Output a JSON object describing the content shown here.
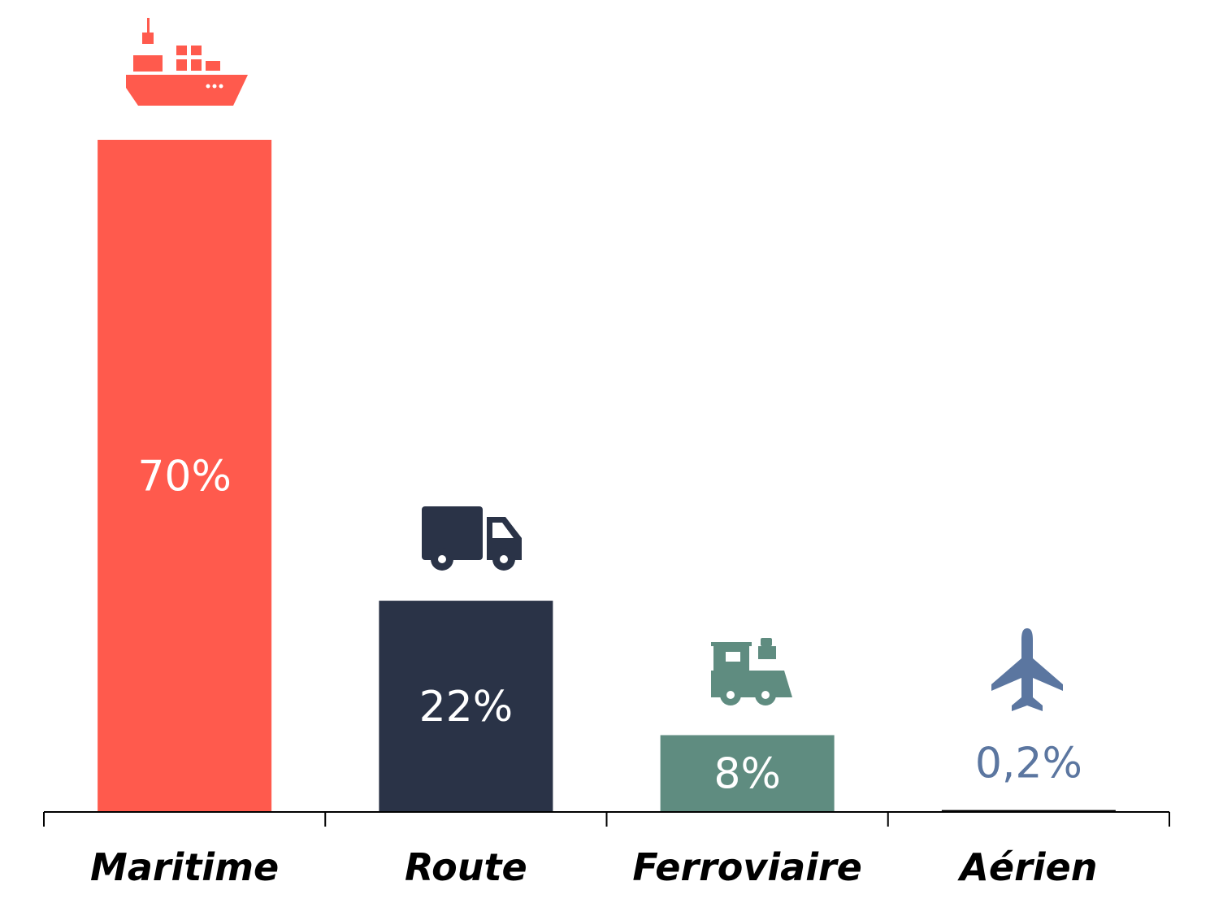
{
  "chart_data": {
    "type": "bar",
    "categories": [
      "Maritime",
      "Route",
      "Ferroviaire",
      "Aérien"
    ],
    "values": [
      70,
      22,
      8,
      0.2
    ],
    "value_labels": [
      "70%",
      "22%",
      "8%",
      "0,2%"
    ],
    "colors": [
      "#ff5a4d",
      "#2a3347",
      "#5f8c80",
      "#5b76a0"
    ],
    "label_colors": [
      "#ffffff",
      "#ffffff",
      "#ffffff",
      "#5b76a0"
    ],
    "icons": [
      "ship-icon",
      "truck-icon",
      "train-icon",
      "airplane-icon"
    ],
    "ylim": [
      0,
      70
    ],
    "grid": false,
    "legend": "none",
    "title": "",
    "xlabel": "",
    "ylabel": ""
  }
}
